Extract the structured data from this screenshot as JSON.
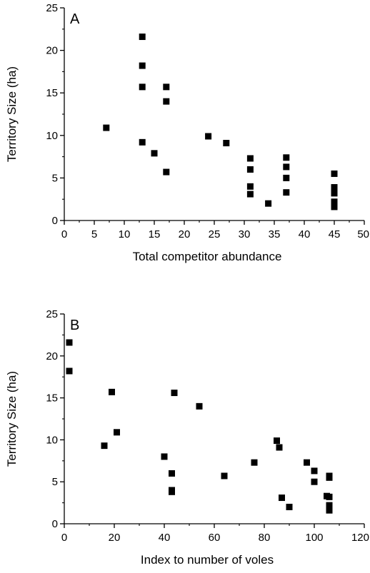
{
  "chart_data": [
    {
      "type": "scatter",
      "panel_label": "A",
      "xlabel": "Total competitor abundance",
      "ylabel": "Territory Size (ha)",
      "xlim": [
        0,
        50
      ],
      "ylim": [
        0,
        25
      ],
      "xticks": [
        0,
        5,
        10,
        15,
        20,
        25,
        30,
        35,
        40,
        45,
        50
      ],
      "yticks": [
        0,
        5,
        10,
        15,
        20,
        25
      ],
      "grid": false,
      "marker": "square",
      "color": "#000000",
      "points": [
        {
          "x": 7,
          "y": 10.9
        },
        {
          "x": 13,
          "y": 21.6
        },
        {
          "x": 13,
          "y": 18.2
        },
        {
          "x": 13,
          "y": 15.7
        },
        {
          "x": 13,
          "y": 9.2
        },
        {
          "x": 15,
          "y": 7.9
        },
        {
          "x": 17,
          "y": 15.7
        },
        {
          "x": 17,
          "y": 14.0
        },
        {
          "x": 17,
          "y": 5.7
        },
        {
          "x": 24,
          "y": 9.9
        },
        {
          "x": 27,
          "y": 9.1
        },
        {
          "x": 31,
          "y": 7.3
        },
        {
          "x": 31,
          "y": 6.0
        },
        {
          "x": 31,
          "y": 4.0
        },
        {
          "x": 31,
          "y": 3.1
        },
        {
          "x": 34,
          "y": 2.0
        },
        {
          "x": 37,
          "y": 7.4
        },
        {
          "x": 37,
          "y": 6.3
        },
        {
          "x": 37,
          "y": 5.0
        },
        {
          "x": 37,
          "y": 3.3
        },
        {
          "x": 45,
          "y": 5.5
        },
        {
          "x": 45,
          "y": 3.9
        },
        {
          "x": 45,
          "y": 3.2
        },
        {
          "x": 45,
          "y": 2.2
        },
        {
          "x": 45,
          "y": 1.6
        }
      ]
    },
    {
      "type": "scatter",
      "panel_label": "B",
      "xlabel": "Index to number of voles",
      "ylabel": "Territory Size (ha)",
      "xlim": [
        0,
        120
      ],
      "ylim": [
        0,
        25
      ],
      "xticks": [
        0,
        20,
        40,
        60,
        80,
        100,
        120
      ],
      "yticks": [
        0,
        5,
        10,
        15,
        20,
        25
      ],
      "grid": false,
      "marker": "square",
      "color": "#000000",
      "points": [
        {
          "x": 2,
          "y": 21.6
        },
        {
          "x": 2,
          "y": 18.2
        },
        {
          "x": 16,
          "y": 9.3
        },
        {
          "x": 19,
          "y": 15.7
        },
        {
          "x": 21,
          "y": 10.9
        },
        {
          "x": 40,
          "y": 8.0
        },
        {
          "x": 43,
          "y": 6.0
        },
        {
          "x": 43,
          "y": 4.0
        },
        {
          "x": 43,
          "y": 3.8
        },
        {
          "x": 44,
          "y": 15.6
        },
        {
          "x": 54,
          "y": 14.0
        },
        {
          "x": 64,
          "y": 5.7
        },
        {
          "x": 76,
          "y": 7.3
        },
        {
          "x": 85,
          "y": 9.9
        },
        {
          "x": 86,
          "y": 9.1
        },
        {
          "x": 87,
          "y": 3.1
        },
        {
          "x": 90,
          "y": 2.0
        },
        {
          "x": 97,
          "y": 7.3
        },
        {
          "x": 100,
          "y": 6.3
        },
        {
          "x": 100,
          "y": 5.0
        },
        {
          "x": 105,
          "y": 3.3
        },
        {
          "x": 106,
          "y": 5.5
        },
        {
          "x": 106,
          "y": 5.7
        },
        {
          "x": 106,
          "y": 3.2
        },
        {
          "x": 106,
          "y": 2.2
        },
        {
          "x": 106,
          "y": 1.6
        }
      ]
    }
  ]
}
